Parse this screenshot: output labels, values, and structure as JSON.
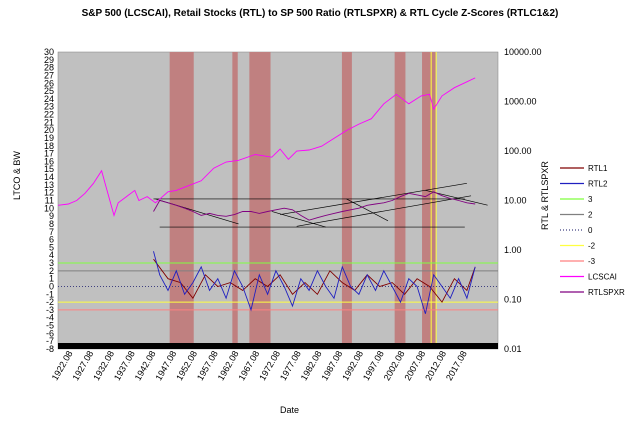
{
  "chart_data": {
    "type": "line",
    "title": "S&P 500 (LCSCAI), Retail Stocks (RTL) to SP 500 Ratio (RTLSPXR) & RTL Cycle Z-Scores (RTLC1&2)",
    "xlabel": "Date",
    "ylabel_left": "LTCO & BW",
    "ylabel_right": "RTL & RTLSPXR",
    "y_left_ticks": [
      "30",
      "29",
      "28",
      "27",
      "26",
      "25",
      "24",
      "23",
      "22",
      "21",
      "20",
      "19",
      "18",
      "17",
      "16",
      "15",
      "14",
      "13",
      "12",
      "11",
      "10",
      "9",
      "8",
      "7",
      "6",
      "5",
      "4",
      "3",
      "2",
      "1",
      "0",
      "-1",
      "-2",
      "-3",
      "-4",
      "-5",
      "-6",
      "-7",
      "-8"
    ],
    "y_left_range": [
      -8,
      30
    ],
    "y_right_ticks": [
      "10000.00",
      "1000.00",
      "100.00",
      "10.00",
      "1.00",
      "0.10",
      "0.01"
    ],
    "y_right_scale": "log",
    "y_right_range": [
      0.01,
      10000
    ],
    "x_ticks": [
      "1922.08",
      "1927.08",
      "1932.08",
      "1937.08",
      "1942.08",
      "1947.08",
      "1952.08",
      "1957.08",
      "1962.08",
      "1967.08",
      "1972.08",
      "1977.08",
      "1982.08",
      "1987.08",
      "1992.08",
      "1997.08",
      "2002.08",
      "2007.08",
      "2012.08",
      "2017.08"
    ],
    "x_range": [
      1918.5,
      2024.5
    ],
    "shaded_periods": [
      [
        1945.4,
        1951.2
      ],
      [
        1960.5,
        1961.8
      ],
      [
        1964.6,
        1969.7
      ],
      [
        1986.9,
        1989.3
      ],
      [
        1999.6,
        2002.2
      ],
      [
        2006.2,
        2009.5
      ]
    ],
    "vertical_lines": [
      2008.4,
      2009.6
    ],
    "horizontal_levels": [
      {
        "name": "3",
        "value": 3,
        "color": "#7fff3f"
      },
      {
        "name": "2",
        "value": 2,
        "color": "#808080"
      },
      {
        "name": "0",
        "value": 0,
        "color": "#404080"
      },
      {
        "name": "-2",
        "value": -2,
        "color": "#ffff40"
      },
      {
        "name": "-3",
        "value": -3,
        "color": "#ff8080"
      }
    ],
    "series": [
      {
        "name": "RTL1",
        "color": "#800000",
        "axis": "left",
        "x": [
          1941.5,
          1945,
          1948,
          1951,
          1954,
          1957,
          1960,
          1963,
          1966,
          1969,
          1972,
          1975,
          1978,
          1981,
          1984,
          1987,
          1990,
          1993,
          1996,
          1999,
          2002,
          2005,
          2008,
          2011,
          2014,
          2017,
          2019
        ],
        "y": [
          3.5,
          1,
          0.5,
          -1.5,
          1.5,
          0,
          0.5,
          -0.5,
          1,
          0,
          1.5,
          -1,
          0.5,
          -1,
          2,
          0.5,
          -0.5,
          1.5,
          0,
          0.5,
          -1,
          1,
          0,
          -2,
          1,
          -0.5,
          2.5
        ]
      },
      {
        "name": "RTL2",
        "color": "#2020c0",
        "axis": "left",
        "x": [
          1941.5,
          1943,
          1945,
          1947,
          1949,
          1951,
          1953,
          1955,
          1957,
          1959,
          1961,
          1963,
          1965,
          1967,
          1969,
          1971,
          1973,
          1975,
          1977,
          1979,
          1981,
          1983,
          1985,
          1987,
          1989,
          1991,
          1993,
          1995,
          1997,
          1999,
          2001,
          2003,
          2005,
          2007,
          2009,
          2011,
          2013,
          2015,
          2017,
          2019
        ],
        "y": [
          4.5,
          1.5,
          -0.5,
          2,
          -1,
          0.5,
          2.5,
          -0.5,
          1,
          -1.5,
          2,
          0,
          -3,
          1.5,
          -1,
          2,
          0,
          -2.5,
          1,
          -0.5,
          2,
          0,
          -1.5,
          2.5,
          0,
          -1,
          1.5,
          -0.5,
          2,
          0,
          -2,
          1,
          0,
          -3.5,
          1.5,
          0,
          -1.5,
          1,
          -1.5,
          2.5
        ]
      },
      {
        "name": "LCSCAI",
        "color": "#ff00ff",
        "axis": "right",
        "x": [
          1918.5,
          1921,
          1923,
          1925,
          1927,
          1929,
          1930,
          1932,
          1933,
          1935,
          1937,
          1938,
          1940,
          1942,
          1945,
          1947,
          1950,
          1953,
          1956,
          1959,
          1962,
          1966,
          1970,
          1972,
          1974,
          1976,
          1979,
          1982,
          1985,
          1988,
          1991,
          1994,
          1997,
          2000,
          2003,
          2006,
          2008,
          2009,
          2011,
          2014,
          2017,
          2019
        ],
        "y": [
          8,
          8.5,
          10,
          14,
          22,
          40,
          20,
          5,
          9,
          12,
          16,
          10,
          12,
          9,
          15,
          16,
          20,
          25,
          45,
          60,
          65,
          85,
          75,
          110,
          68,
          100,
          105,
          125,
          180,
          260,
          350,
          450,
          900,
          1400,
          900,
          1300,
          1400,
          700,
          1300,
          1900,
          2500,
          3000
        ]
      },
      {
        "name": "RTLSPXR",
        "color": "#800080",
        "axis": "right",
        "x": [
          1941.5,
          1943,
          1945,
          1947,
          1949,
          1951,
          1953,
          1955,
          1957,
          1959,
          1961,
          1963,
          1965,
          1967,
          1969,
          1971,
          1973,
          1975,
          1977,
          1979,
          1981,
          1983,
          1985,
          1987,
          1989,
          1991,
          1993,
          1995,
          1997,
          1999,
          2001,
          2003,
          2005,
          2007,
          2009,
          2011,
          2013,
          2015,
          2017,
          2019
        ],
        "y": [
          6,
          10,
          9,
          8,
          7,
          6,
          5,
          5.5,
          5,
          4.8,
          5.2,
          6,
          6,
          5.5,
          6,
          6.5,
          7,
          6.5,
          5,
          4,
          4.5,
          5,
          5.5,
          6,
          6.5,
          7,
          8,
          8.5,
          9,
          10,
          12,
          14,
          13,
          12,
          15,
          12.5,
          11,
          10,
          9,
          8.5
        ]
      }
    ],
    "trend_lines_left": [
      {
        "x": [
          1941.5,
          2016.5
        ],
        "y": [
          11.2,
          11.2
        ]
      },
      {
        "x": [
          1943,
          2016.5
        ],
        "y": [
          7.6,
          7.6
        ]
      },
      {
        "x": [
          1942,
          1962
        ],
        "y": [
          11.2,
          8.0
        ]
      },
      {
        "x": [
          1972,
          2017
        ],
        "y": [
          9.2,
          13.2
        ]
      },
      {
        "x": [
          1970,
          1983
        ],
        "y": [
          9.6,
          7.6
        ]
      },
      {
        "x": [
          1988,
          1998
        ],
        "y": [
          11.2,
          8.4
        ]
      },
      {
        "x": [
          2007,
          2022
        ],
        "y": [
          12.3,
          10.4
        ]
      },
      {
        "x": [
          1976,
          2018
        ],
        "y": [
          7.7,
          11.6
        ]
      }
    ]
  },
  "legend": {
    "items": [
      {
        "label": "RTL1",
        "color": "#800000",
        "style": "line"
      },
      {
        "label": "RTL2",
        "color": "#2020c0",
        "style": "line"
      },
      {
        "label": "3",
        "color": "#7fff3f",
        "style": "line"
      },
      {
        "label": "2",
        "color": "#808080",
        "style": "line"
      },
      {
        "label": "0",
        "color": "#404080",
        "style": "dotted"
      },
      {
        "label": "-2",
        "color": "#ffff40",
        "style": "line"
      },
      {
        "label": "-3",
        "color": "#ff8080",
        "style": "line"
      },
      {
        "label": "LCSCAI",
        "color": "#ff00ff",
        "style": "line"
      },
      {
        "label": "RTLSPXR",
        "color": "#800080",
        "style": "line"
      }
    ]
  },
  "colors": {
    "plot_background": "#c0c0c0",
    "shading": "#c08080",
    "vertical_line": "#ffff40"
  }
}
